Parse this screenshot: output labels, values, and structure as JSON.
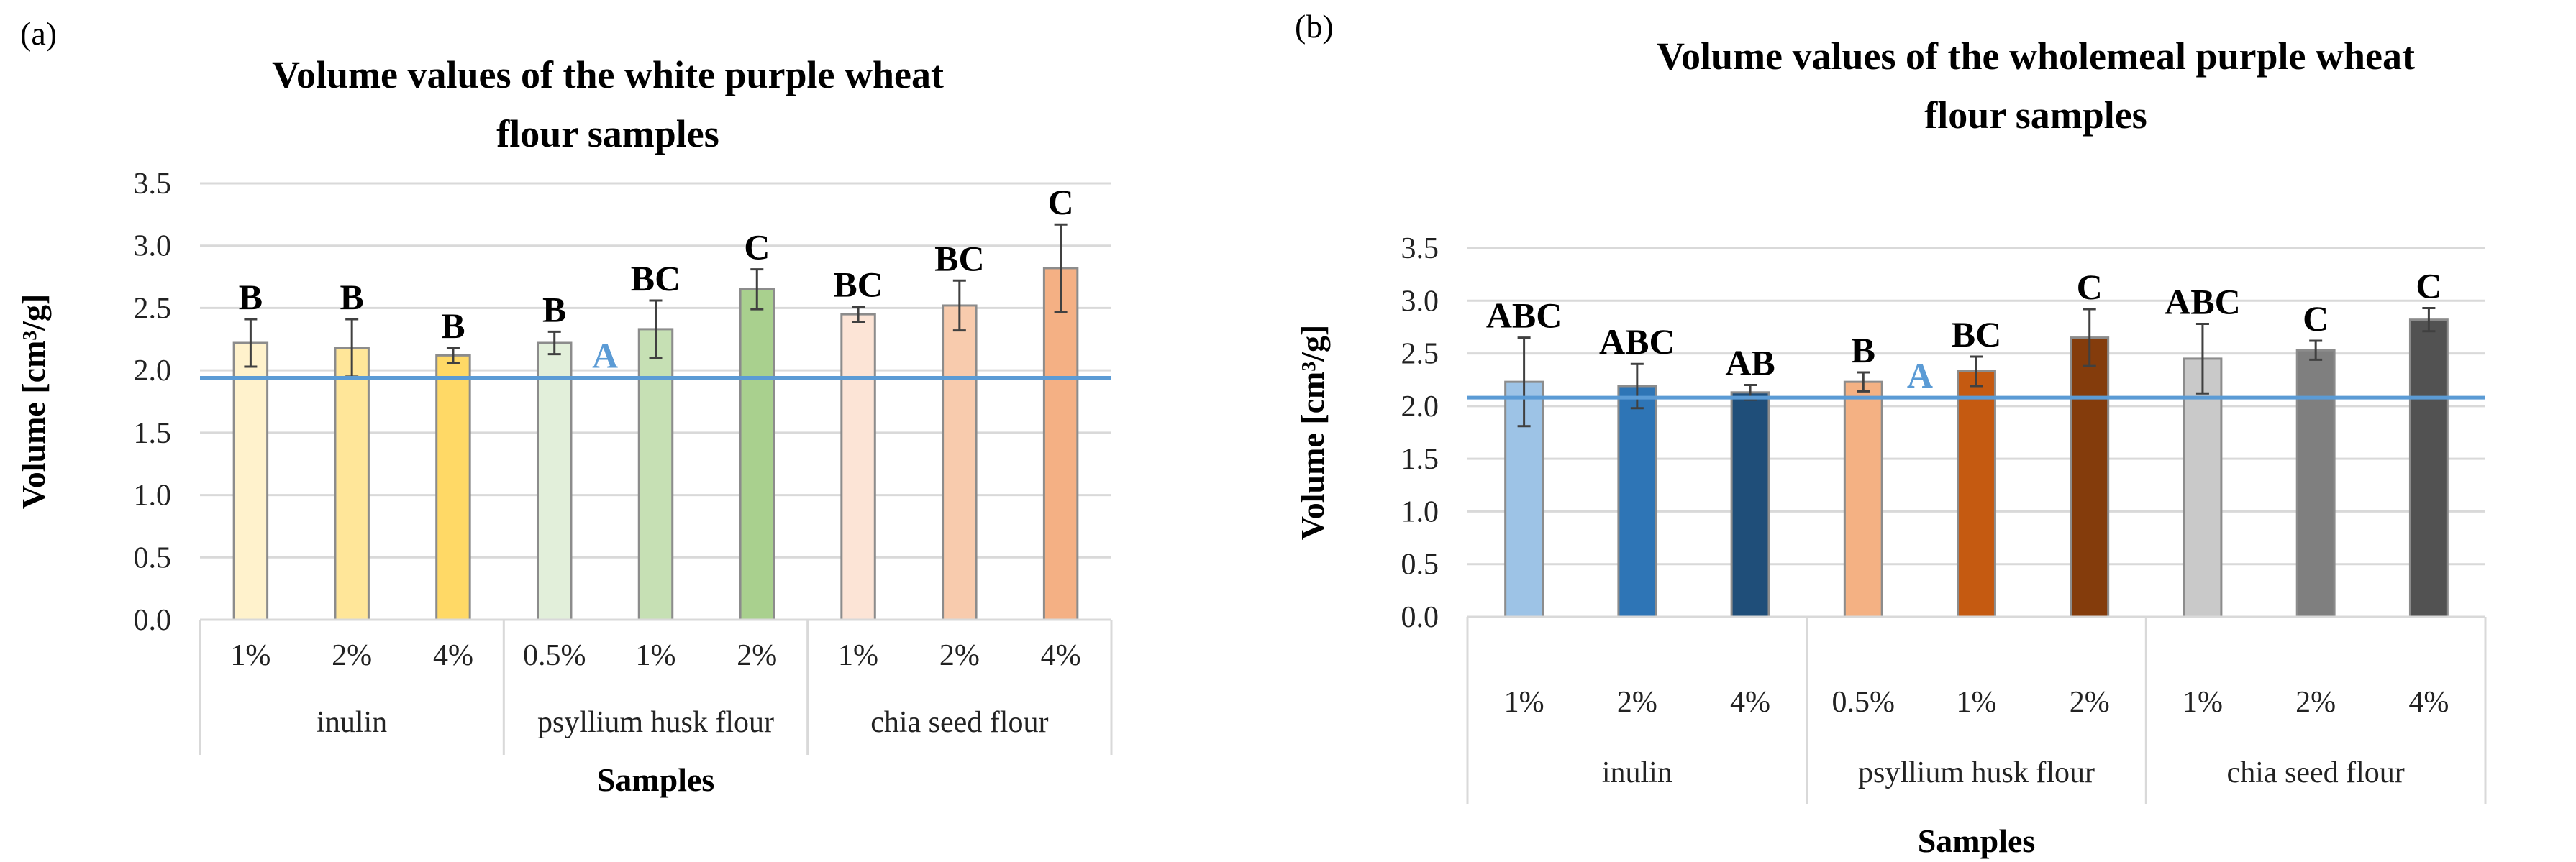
{
  "chart_data": [
    {
      "type": "bar",
      "panel_label": "(a)",
      "title": "Volume values of the white purple wheat flour samples",
      "title_lines": [
        "Volume values of the white purple wheat",
        "flour samples"
      ],
      "xlabel": "Samples",
      "ylabel": "Volume [cm³/g]",
      "ylim": [
        0,
        3.5
      ],
      "yticks": [
        "0.0",
        "0.5",
        "1.0",
        "1.5",
        "2.0",
        "2.5",
        "3.0",
        "3.5"
      ],
      "grid": true,
      "groups": [
        {
          "name": "inulin",
          "categories": [
            "1%",
            "2%",
            "4%"
          ]
        },
        {
          "name": "psyllium husk flour",
          "categories": [
            "0.5%",
            "1%",
            "2%"
          ]
        },
        {
          "name": "chia seed flour",
          "categories": [
            "1%",
            "2%",
            "4%"
          ]
        }
      ],
      "values": [
        2.22,
        2.18,
        2.12,
        2.22,
        2.33,
        2.65,
        2.45,
        2.52,
        2.82
      ],
      "errors": [
        0.19,
        0.23,
        0.06,
        0.09,
        0.23,
        0.16,
        0.06,
        0.2,
        0.35
      ],
      "significance": [
        "B",
        "B",
        "B",
        "B",
        "BC",
        "C",
        "BC",
        "BC",
        "C"
      ],
      "colors": [
        "#FFF2CC",
        "#FFE699",
        "#FFD966",
        "#E2EFDA",
        "#C6E0B4",
        "#A9D08E",
        "#FCE4D6",
        "#F8CBAD",
        "#F4B084"
      ],
      "reference": {
        "value": 1.94,
        "label": "A",
        "color": "#5B9BD5"
      }
    },
    {
      "type": "bar",
      "panel_label": "(b)",
      "title": "Volume values of the wholemeal purple wheat flour samples",
      "title_lines": [
        "Volume values of the wholemeal purple wheat",
        "flour samples"
      ],
      "xlabel": "Samples",
      "ylabel": "Volume [cm³/g]",
      "ylim": [
        0,
        3.5
      ],
      "yticks": [
        "0.0",
        "0.5",
        "1.0",
        "1.5",
        "2.0",
        "2.5",
        "3.0",
        "3.5"
      ],
      "grid": true,
      "groups": [
        {
          "name": "inulin",
          "categories": [
            "1%",
            "2%",
            "4%"
          ]
        },
        {
          "name": "psyllium husk flour",
          "categories": [
            "0.5%",
            "1%",
            "2%"
          ]
        },
        {
          "name": "chia seed flour",
          "categories": [
            "1%",
            "2%",
            "4%"
          ]
        }
      ],
      "values": [
        2.23,
        2.19,
        2.13,
        2.23,
        2.33,
        2.65,
        2.45,
        2.53,
        2.82
      ],
      "errors": [
        0.42,
        0.21,
        0.07,
        0.09,
        0.14,
        0.27,
        0.33,
        0.09,
        0.11
      ],
      "significance": [
        "ABC",
        "ABC",
        "AB",
        "B",
        "BC",
        "C",
        "ABC",
        "C",
        "C"
      ],
      "colors": [
        "#9DC3E6",
        "#2E75B6",
        "#1F4E79",
        "#F4B183",
        "#C55A11",
        "#843C0C",
        "#C9C9C9",
        "#7F7F7F",
        "#525252"
      ],
      "reference": {
        "value": 2.08,
        "label": "A",
        "color": "#5B9BD5"
      }
    }
  ]
}
